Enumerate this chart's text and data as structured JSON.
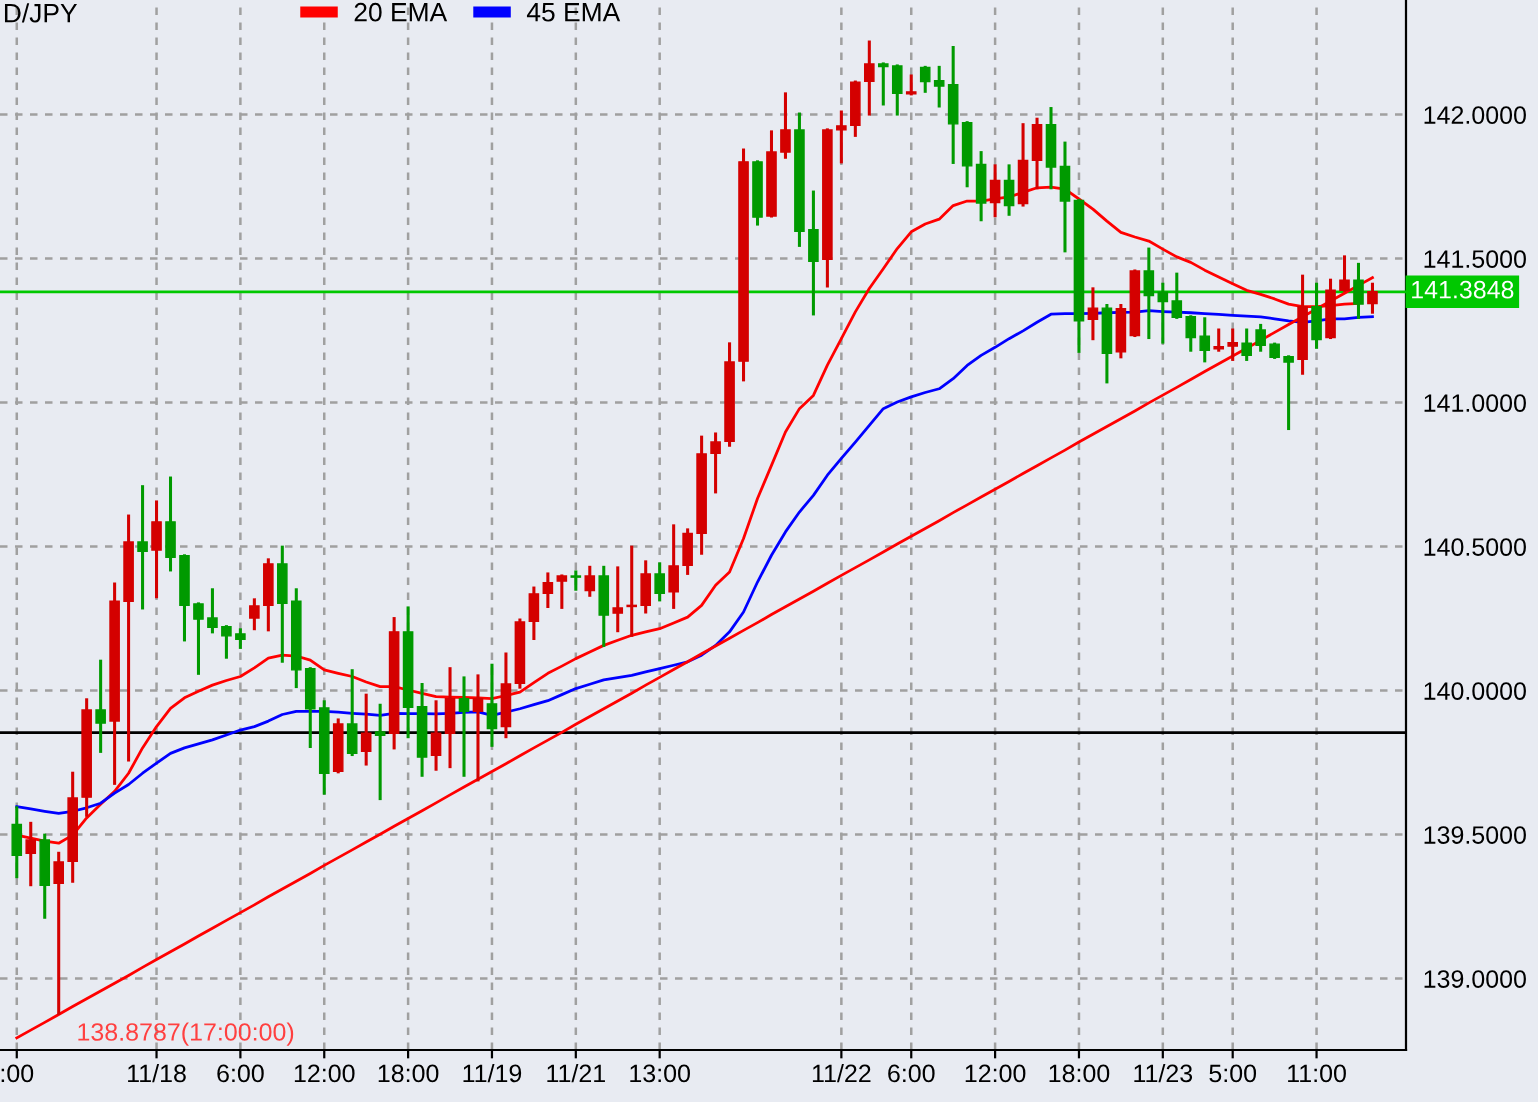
{
  "chart_data": {
    "type": "candlestick",
    "title": "D/JPY",
    "categories": [
      ":00",
      null,
      null,
      null,
      null,
      null,
      null,
      null,
      null,
      null,
      "11/18",
      null,
      null,
      null,
      null,
      null,
      "6:00",
      null,
      null,
      null,
      null,
      null,
      "12:00",
      null,
      null,
      null,
      null,
      null,
      "18:00",
      null,
      null,
      null,
      null,
      null,
      "11/19",
      null,
      null,
      null,
      null,
      null,
      "11/21",
      null,
      null,
      null,
      null,
      null,
      "13:00",
      null,
      null,
      null,
      null,
      null,
      null,
      null,
      null,
      null,
      null,
      null,
      null,
      "11/22",
      null,
      null,
      null,
      null,
      "6:00",
      null,
      null,
      null,
      null,
      null,
      "12:00",
      null,
      null,
      null,
      null,
      null,
      "18:00",
      null,
      null,
      null,
      null,
      null,
      "11/23",
      null,
      null,
      null,
      null,
      "5:00",
      null,
      null,
      null,
      null,
      null,
      "11:00",
      null,
      null,
      null,
      null
    ],
    "ohlc": [
      [
        139.535,
        139.593,
        139.354,
        139.428
      ],
      [
        139.435,
        139.539,
        139.326,
        139.481
      ],
      [
        139.481,
        139.498,
        139.213,
        139.324
      ],
      [
        139.331,
        139.435,
        138.879,
        139.405
      ],
      [
        139.407,
        139.713,
        139.338,
        139.627
      ],
      [
        139.63,
        139.968,
        139.567,
        139.933
      ],
      [
        139.933,
        140.102,
        139.789,
        139.887
      ],
      [
        139.894,
        140.37,
        139.678,
        140.31
      ],
      [
        140.31,
        140.606,
        139.759,
        140.516
      ],
      [
        140.516,
        140.708,
        140.287,
        140.484
      ],
      [
        140.488,
        140.655,
        140.326,
        140.586
      ],
      [
        140.586,
        140.738,
        140.419,
        140.463
      ],
      [
        140.468,
        140.468,
        140.176,
        140.296
      ],
      [
        140.301,
        140.301,
        140.06,
        140.248
      ],
      [
        140.252,
        140.35,
        140.204,
        140.22
      ],
      [
        140.222,
        140.222,
        140.116,
        140.19
      ],
      [
        140.197,
        140.211,
        140.15,
        140.178
      ],
      [
        140.252,
        140.315,
        140.215,
        140.294
      ],
      [
        140.296,
        140.454,
        140.211,
        140.44
      ],
      [
        140.44,
        140.498,
        140.102,
        140.303
      ],
      [
        140.31,
        140.35,
        140.014,
        140.072
      ],
      [
        140.076,
        140.076,
        139.806,
        139.937
      ],
      [
        139.94,
        139.961,
        139.644,
        139.713
      ],
      [
        139.72,
        139.898,
        139.718,
        139.884
      ],
      [
        139.884,
        140.069,
        139.778,
        139.782
      ],
      [
        139.789,
        139.984,
        139.745,
        139.852
      ],
      [
        139.856,
        139.949,
        139.625,
        139.845
      ],
      [
        139.852,
        140.25,
        139.801,
        140.204
      ],
      [
        140.204,
        140.287,
        139.84,
        139.942
      ],
      [
        139.944,
        140.021,
        139.706,
        139.769
      ],
      [
        139.775,
        139.961,
        139.727,
        139.852
      ],
      [
        139.852,
        140.076,
        139.736,
        139.972
      ],
      [
        139.972,
        140.044,
        139.706,
        139.928
      ],
      [
        139.928,
        140.051,
        139.69,
        139.972
      ],
      [
        139.954,
        140.088,
        139.81,
        139.868
      ],
      [
        139.875,
        140.127,
        139.84,
        140.023
      ],
      [
        140.025,
        140.245,
        140.012,
        140.238
      ],
      [
        140.241,
        140.356,
        140.181,
        140.336
      ],
      [
        140.338,
        140.405,
        140.292,
        140.375
      ],
      [
        140.38,
        140.398,
        140.289,
        140.398
      ],
      [
        140.398,
        140.412,
        140.352,
        140.394
      ],
      [
        140.347,
        140.428,
        140.331,
        140.398
      ],
      [
        140.398,
        140.428,
        140.157,
        140.262
      ],
      [
        140.269,
        140.426,
        140.208,
        140.287
      ],
      [
        140.292,
        140.498,
        140.192,
        140.296
      ],
      [
        140.296,
        140.447,
        140.273,
        140.405
      ],
      [
        140.405,
        140.44,
        140.315,
        140.338
      ],
      [
        140.343,
        140.572,
        140.289,
        140.433
      ],
      [
        140.435,
        140.558,
        140.407,
        140.546
      ],
      [
        140.546,
        140.88,
        140.477,
        140.822
      ],
      [
        140.824,
        140.891,
        140.69,
        140.863
      ],
      [
        140.866,
        141.204,
        140.852,
        141.141
      ],
      [
        141.144,
        141.877,
        141.079,
        141.836
      ],
      [
        141.836,
        141.836,
        141.62,
        141.644
      ],
      [
        141.648,
        141.94,
        141.648,
        141.87
      ],
      [
        141.87,
        142.072,
        141.852,
        141.947
      ],
      [
        141.947,
        142.002,
        141.546,
        141.595
      ],
      [
        141.6,
        141.731,
        141.308,
        141.491
      ],
      [
        141.498,
        141.947,
        141.405,
        141.947
      ],
      [
        141.947,
        142.009,
        141.836,
        141.961
      ],
      [
        141.963,
        142.113,
        141.928,
        142.113
      ],
      [
        142.116,
        142.252,
        142.002,
        142.176
      ],
      [
        142.176,
        142.176,
        142.037,
        142.167
      ],
      [
        142.169,
        142.169,
        142.002,
        142.074
      ],
      [
        142.072,
        142.134,
        142.072,
        142.079
      ],
      [
        142.164,
        142.164,
        142.081,
        142.115
      ],
      [
        142.118,
        142.164,
        142.03,
        142.099
      ],
      [
        142.104,
        142.233,
        141.834,
        141.968
      ],
      [
        141.972,
        141.972,
        141.753,
        141.822
      ],
      [
        141.827,
        141.868,
        141.635,
        141.693
      ],
      [
        141.695,
        141.822,
        141.649,
        141.771
      ],
      [
        141.771,
        141.822,
        141.654,
        141.684
      ],
      [
        141.691,
        141.965,
        141.686,
        141.841
      ],
      [
        141.841,
        141.984,
        141.746,
        141.965
      ],
      [
        141.965,
        142.021,
        141.746,
        141.818
      ],
      [
        141.82,
        141.901,
        141.527,
        141.7
      ],
      [
        141.702,
        141.702,
        141.178,
        141.284
      ],
      [
        141.289,
        141.395,
        141.222,
        141.328
      ],
      [
        141.328,
        141.337,
        141.072,
        141.171
      ],
      [
        141.176,
        141.337,
        141.159,
        141.326
      ],
      [
        141.233,
        141.457,
        141.233,
        141.457
      ],
      [
        141.457,
        141.533,
        141.226,
        141.372
      ],
      [
        141.383,
        141.411,
        141.21,
        141.351
      ],
      [
        141.353,
        141.446,
        141.296,
        141.296
      ],
      [
        141.298,
        141.298,
        141.182,
        141.226
      ],
      [
        141.231,
        141.291,
        141.145,
        141.182
      ],
      [
        141.187,
        141.252,
        141.182,
        141.194
      ],
      [
        141.196,
        141.252,
        141.15,
        141.208
      ],
      [
        141.206,
        141.252,
        141.15,
        141.164
      ],
      [
        141.252,
        141.268,
        141.182,
        141.199
      ],
      [
        141.203,
        141.203,
        141.157,
        141.157
      ],
      [
        141.159,
        141.159,
        140.91,
        141.141
      ],
      [
        141.15,
        141.439,
        141.102,
        141.333
      ],
      [
        141.333,
        141.411,
        141.192,
        141.219
      ],
      [
        141.226,
        141.425,
        141.226,
        141.39
      ],
      [
        141.39,
        141.506,
        141.39,
        141.425
      ],
      [
        141.425,
        141.48,
        141.296,
        141.342
      ],
      [
        141.344,
        141.411,
        141.314,
        141.385
      ]
    ],
    "colors": [
      "#009a00",
      "#d40000",
      "#009a00",
      "#d40000",
      "#d40000",
      "#d40000",
      "#009a00",
      "#d40000",
      "#d40000",
      "#009a00",
      "#d40000",
      "#009a00",
      "#009a00",
      "#009a00",
      "#009a00",
      "#009a00",
      "#009a00",
      "#d40000",
      "#d40000",
      "#009a00",
      "#009a00",
      "#009a00",
      "#009a00",
      "#d40000",
      "#009a00",
      "#d40000",
      "#009a00",
      "#d40000",
      "#009a00",
      "#009a00",
      "#d40000",
      "#d40000",
      "#009a00",
      "#d40000",
      "#009a00",
      "#d40000",
      "#d40000",
      "#d40000",
      "#d40000",
      "#d40000",
      "#009a00",
      "#d40000",
      "#009a00",
      "#d40000",
      "#d40000",
      "#d40000",
      "#009a00",
      "#d40000",
      "#d40000",
      "#d40000",
      "#d40000",
      "#d40000",
      "#d40000",
      "#009a00",
      "#d40000",
      "#d40000",
      "#009a00",
      "#009a00",
      "#d40000",
      "#d40000",
      "#d40000",
      "#d40000",
      "#009a00",
      "#009a00",
      "#d40000",
      "#009a00",
      "#009a00",
      "#009a00",
      "#009a00",
      "#009a00",
      "#d40000",
      "#009a00",
      "#d40000",
      "#d40000",
      "#009a00",
      "#009a00",
      "#009a00",
      "#d40000",
      "#009a00",
      "#d40000",
      "#d40000",
      "#009a00",
      "#009a00",
      "#009a00",
      "#009a00",
      "#009a00",
      "#d40000",
      "#d40000",
      "#009a00",
      "#009a00",
      "#009a00",
      "#009a00",
      "#d40000",
      "#009a00",
      "#d40000",
      "#d40000",
      "#009a00",
      "#d40000"
    ],
    "series": [
      {
        "name": "20 EMA",
        "type": "line",
        "color": "#ff0000",
        "values": [
          139.498,
          139.488,
          139.477,
          139.47,
          139.498,
          139.558,
          139.605,
          139.65,
          139.713,
          139.801,
          139.875,
          139.938,
          139.975,
          139.998,
          140.019,
          140.035,
          140.049,
          140.079,
          140.113,
          140.123,
          140.12,
          140.106,
          140.072,
          140.06,
          140.049,
          140.03,
          140.014,
          140.014,
          140.002,
          139.99,
          139.979,
          139.977,
          139.976,
          139.975,
          139.972,
          139.983,
          139.995,
          140.028,
          140.06,
          140.085,
          140.111,
          140.134,
          140.157,
          140.175,
          140.192,
          140.204,
          140.215,
          140.235,
          140.255,
          140.296,
          140.366,
          140.412,
          140.528,
          140.667,
          140.782,
          140.898,
          140.979,
          141.025,
          141.13,
          141.222,
          141.315,
          141.396,
          141.465,
          141.535,
          141.593,
          141.62,
          141.637,
          141.684,
          141.7,
          141.7,
          141.707,
          141.714,
          141.73,
          141.746,
          141.748,
          141.741,
          141.707,
          141.672,
          141.63,
          141.591,
          141.575,
          141.561,
          141.533,
          141.506,
          141.487,
          141.46,
          141.436,
          141.413,
          141.39,
          141.376,
          141.36,
          141.342,
          141.333,
          141.333,
          141.337,
          141.342,
          141.344,
          null
        ]
      },
      {
        "name": "45 EMA",
        "type": "line",
        "color": "#0000ff",
        "values": [
          139.597,
          139.589,
          139.581,
          139.574,
          139.581,
          139.593,
          139.609,
          139.644,
          139.674,
          139.713,
          139.748,
          139.782,
          139.801,
          139.815,
          139.829,
          139.846,
          139.863,
          139.875,
          139.894,
          139.917,
          139.928,
          139.928,
          139.928,
          139.925,
          139.921,
          139.918,
          139.914,
          139.921,
          139.92,
          139.92,
          139.919,
          139.921,
          139.924,
          139.926,
          139.914,
          139.925,
          139.937,
          139.951,
          139.965,
          139.986,
          140.007,
          140.022,
          140.037,
          140.045,
          140.053,
          140.065,
          140.076,
          140.088,
          140.1,
          140.123,
          140.157,
          140.204,
          140.273,
          140.377,
          140.47,
          140.551,
          140.62,
          140.678,
          140.748,
          140.806,
          140.863,
          140.921,
          140.979,
          141.002,
          141.02,
          141.035,
          141.048,
          141.083,
          141.129,
          141.164,
          141.192,
          141.222,
          141.249,
          141.279,
          141.307,
          141.309,
          141.309,
          141.31,
          141.312,
          141.313,
          141.314,
          141.319,
          141.316,
          141.314,
          141.312,
          141.309,
          141.306,
          141.303,
          141.3,
          141.298,
          141.291,
          141.284,
          141.279,
          141.284,
          141.291,
          141.291,
          141.296,
          141.298
        ]
      },
      {
        "type": "line",
        "color": "#ff0000",
        "values": [
          138.794,
          138.821,
          138.848,
          138.875,
          138.903,
          138.93,
          138.957,
          138.984,
          139.011,
          139.039,
          139.066,
          139.093,
          139.12,
          139.148,
          139.175,
          139.202,
          139.229,
          139.256,
          139.284,
          139.311,
          139.338,
          139.365,
          139.393,
          139.42,
          139.447,
          139.474,
          139.501,
          139.529,
          139.556,
          139.583,
          139.61,
          139.638,
          139.665,
          139.692,
          139.719,
          139.746,
          139.774,
          139.801,
          139.828,
          139.855,
          139.883,
          139.91,
          139.937,
          139.964,
          139.991,
          140.019,
          140.046,
          140.073,
          140.1,
          140.128,
          140.155,
          140.182,
          140.209,
          140.236,
          140.264,
          140.291,
          140.318,
          140.345,
          140.373,
          140.4,
          140.427,
          140.454,
          140.481,
          140.509,
          140.536,
          140.563,
          140.59,
          140.618,
          140.645,
          140.672,
          140.699,
          140.726,
          140.754,
          140.781,
          140.808,
          140.835,
          140.863,
          140.89,
          140.917,
          140.944,
          140.971,
          140.999,
          141.026,
          141.053,
          141.08,
          141.108,
          141.135,
          141.162,
          141.189,
          141.216,
          141.244,
          141.271,
          141.298,
          141.325,
          141.353,
          141.38,
          141.407,
          141.434
        ]
      }
    ],
    "ylim": [
      138.752,
      142.398
    ],
    "yticks": [
      {
        "value": 139.0,
        "label": "139.0000"
      },
      {
        "value": 139.5,
        "label": "139.5000"
      },
      {
        "value": 140.0,
        "label": "140.0000"
      },
      {
        "value": 140.5,
        "label": "140.5000"
      },
      {
        "value": 141.0,
        "label": "141.0000"
      },
      {
        "value": 141.5,
        "label": "141.5000"
      },
      {
        "value": 142.0,
        "label": "142.0000"
      }
    ],
    "ref_lines": [
      {
        "axis": "y",
        "value": 141.3848,
        "label": "141.3848",
        "color": "#00c800"
      },
      {
        "axis": "y",
        "value": 139.854,
        "color": "#000000"
      }
    ],
    "annotations": [
      "138.8787(17:00:00)"
    ],
    "legend": "top left",
    "grid": true,
    "marker": "none",
    "line_style": "solid"
  }
}
